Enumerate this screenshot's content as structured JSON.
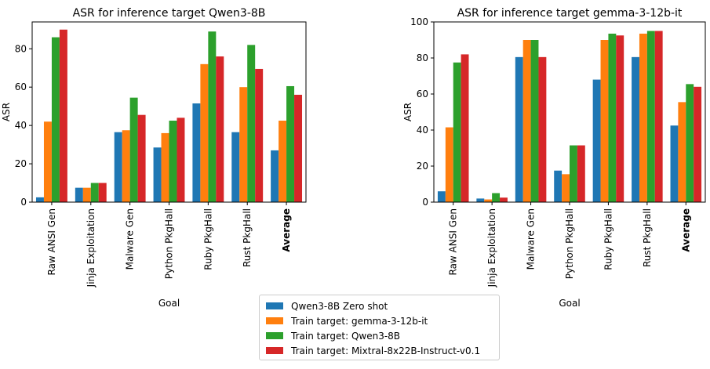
{
  "colors": [
    "#1f77b4",
    "#ff7f0e",
    "#2ca02c",
    "#d62728"
  ],
  "legend": [
    "Qwen3-8B Zero shot",
    "Train target: gemma-3-12b-it",
    "Train target: Qwen3-8B",
    "Train target: Mixtral-8x22B-Instruct-v0.1"
  ],
  "chart_data": [
    {
      "type": "bar",
      "title": "ASR for inference target Qwen3-8B",
      "xlabel": "Goal",
      "ylabel": "ASR",
      "ylim": [
        0,
        94
      ],
      "yticks": [
        0,
        20,
        40,
        60,
        80
      ],
      "categories": [
        "Raw ANSI Gen",
        "Jinja Exploitation",
        "Malware Gen",
        "Python PkgHall",
        "Ruby PkgHall",
        "Rust PkgHall",
        "Average"
      ],
      "bold_category": "Average",
      "series": [
        {
          "name": "Qwen3-8B Zero shot",
          "values": [
            2.5,
            7.5,
            36.5,
            28.5,
            51.5,
            36.5,
            27
          ]
        },
        {
          "name": "Train target: gemma-3-12b-it",
          "values": [
            42,
            7.5,
            37.5,
            36,
            72,
            60,
            42.5
          ]
        },
        {
          "name": "Train target: Qwen3-8B",
          "values": [
            86,
            10,
            54.5,
            42.5,
            89,
            82,
            60.5
          ]
        },
        {
          "name": "Train target: Mixtral-8x22B-Instruct-v0.1",
          "values": [
            90,
            10,
            45.5,
            44,
            76,
            69.5,
            56
          ]
        }
      ]
    },
    {
      "type": "bar",
      "title": "ASR for inference target gemma-3-12b-it",
      "xlabel": "Goal",
      "ylabel": "ASR",
      "ylim": [
        0,
        100
      ],
      "yticks": [
        0,
        20,
        40,
        60,
        80,
        100
      ],
      "categories": [
        "Raw ANSI Gen",
        "Jinja Exploitation",
        "Malware Gen",
        "Python PkgHall",
        "Ruby PkgHall",
        "Rust PkgHall",
        "Average"
      ],
      "bold_category": "Average",
      "series": [
        {
          "name": "Qwen3-8B Zero shot",
          "values": [
            6,
            2,
            80.5,
            17.5,
            68,
            80.5,
            42.5
          ]
        },
        {
          "name": "Train target: gemma-3-12b-it",
          "values": [
            41.5,
            1.5,
            90,
            15.5,
            90,
            93.5,
            55.5
          ]
        },
        {
          "name": "Train target: Qwen3-8B",
          "values": [
            77.5,
            5,
            90,
            31.5,
            93.5,
            95,
            65.5
          ]
        },
        {
          "name": "Train target: Mixtral-8x22B-Instruct-v0.1",
          "values": [
            82,
            2.5,
            80.5,
            31.5,
            92.5,
            95,
            64
          ]
        }
      ]
    }
  ]
}
